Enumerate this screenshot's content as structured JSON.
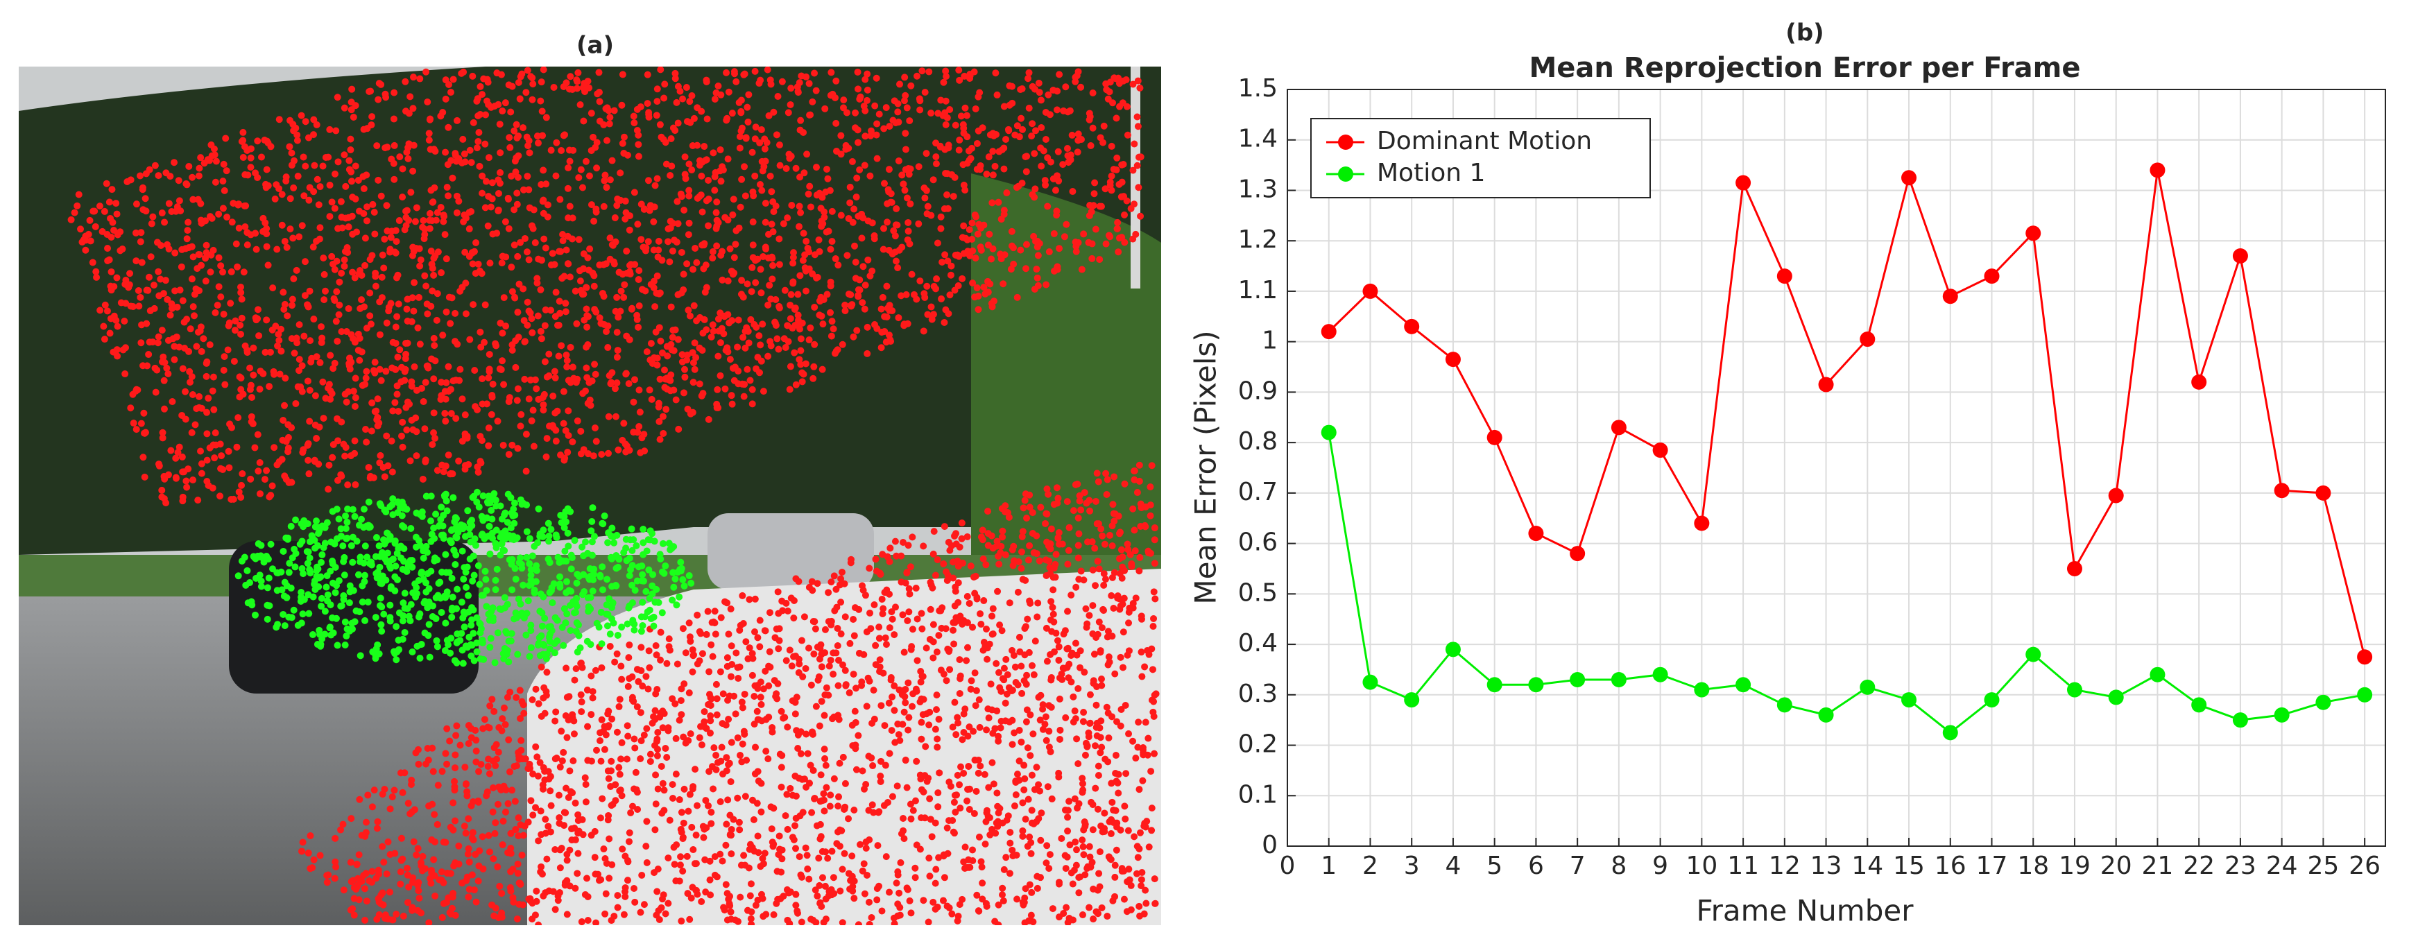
{
  "panel_a": {
    "label": "(a)"
  },
  "chart_data": {
    "type": "line",
    "panel_label": "(b)",
    "title": "Mean Reprojection Error per Frame",
    "x_label": "Frame Number",
    "y_label": "Mean Error (Pixels)",
    "x": [
      1,
      2,
      3,
      4,
      5,
      6,
      7,
      8,
      9,
      10,
      11,
      12,
      13,
      14,
      15,
      16,
      17,
      18,
      19,
      20,
      21,
      22,
      23,
      24,
      25,
      26
    ],
    "series": [
      {
        "name": "Dominant Motion",
        "color": "#ff0000",
        "values": [
          1.02,
          1.1,
          1.03,
          0.965,
          0.81,
          0.62,
          0.58,
          0.83,
          0.785,
          0.64,
          1.315,
          1.13,
          0.915,
          1.005,
          1.325,
          1.09,
          1.13,
          1.215,
          0.55,
          0.695,
          1.34,
          0.92,
          1.17,
          0.705,
          0.7,
          0.375
        ]
      },
      {
        "name": "Motion 1",
        "color": "#00ee00",
        "values": [
          0.82,
          0.325,
          0.29,
          0.39,
          0.32,
          0.32,
          0.33,
          0.33,
          0.34,
          0.31,
          0.32,
          0.28,
          0.26,
          0.315,
          0.29,
          0.225,
          0.29,
          0.38,
          0.31,
          0.295,
          0.34,
          0.28,
          0.25,
          0.26,
          0.285,
          0.3
        ]
      }
    ],
    "xlim": [
      0,
      26.5
    ],
    "xticks": [
      0,
      1,
      2,
      3,
      4,
      5,
      6,
      7,
      8,
      9,
      10,
      11,
      12,
      13,
      14,
      15,
      16,
      17,
      18,
      19,
      20,
      21,
      22,
      23,
      24,
      25,
      26
    ],
    "ylim": [
      0,
      1.5
    ],
    "yticks": [
      0,
      0.1,
      0.2,
      0.3,
      0.4,
      0.5,
      0.6,
      0.7,
      0.8,
      0.9,
      1,
      1.1,
      1.2,
      1.3,
      1.4,
      1.5
    ],
    "grid": true,
    "legend": "upper-left"
  }
}
